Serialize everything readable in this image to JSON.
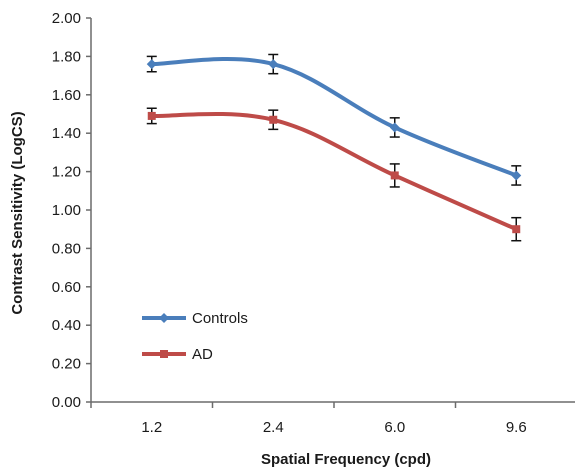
{
  "chart_data": {
    "type": "line",
    "title": "",
    "xlabel": "Spatial Frequency (cpd)",
    "ylabel": "Contrast Sensitivity (LogCS)",
    "categories": [
      "1.2",
      "2.4",
      "6.0",
      "9.6"
    ],
    "ylim": [
      0,
      2
    ],
    "yticks": [
      "0.00",
      "0.20",
      "0.40",
      "0.60",
      "0.80",
      "1.00",
      "1.20",
      "1.40",
      "1.60",
      "1.80",
      "2.00"
    ],
    "grid": false,
    "legend_position": "lower-left",
    "series": [
      {
        "name": "Controls",
        "color": "#4a7ebb",
        "marker": "diamond",
        "values": [
          1.76,
          1.76,
          1.43,
          1.18
        ],
        "error": [
          0.04,
          0.05,
          0.05,
          0.05
        ]
      },
      {
        "name": "AD",
        "color": "#be4b48",
        "marker": "square",
        "values": [
          1.49,
          1.47,
          1.18,
          0.9
        ],
        "error": [
          0.04,
          0.05,
          0.06,
          0.06
        ]
      }
    ]
  }
}
